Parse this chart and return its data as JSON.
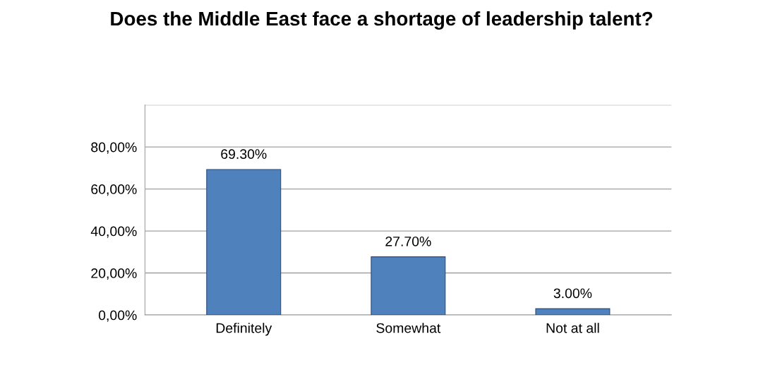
{
  "chart_data": {
    "type": "bar",
    "title": "Does the Middle East face a shortage of leadership talent?",
    "categories": [
      "Definitely",
      "Somewhat",
      "Not at all"
    ],
    "values": [
      69.3,
      27.7,
      3.0
    ],
    "value_labels": [
      "69.30%",
      "27.70%",
      "3.00%"
    ],
    "color": "#4f81bd",
    "ylim": [
      0,
      100
    ],
    "yticks": [
      {
        "value": 0,
        "label": "0,00%"
      },
      {
        "value": 20,
        "label": "20,00%"
      },
      {
        "value": 40,
        "label": "40,00%"
      },
      {
        "value": 60,
        "label": "60,00%"
      },
      {
        "value": 80,
        "label": "80,00%"
      },
      {
        "value": 100,
        "label": null
      }
    ],
    "grid": "y"
  }
}
